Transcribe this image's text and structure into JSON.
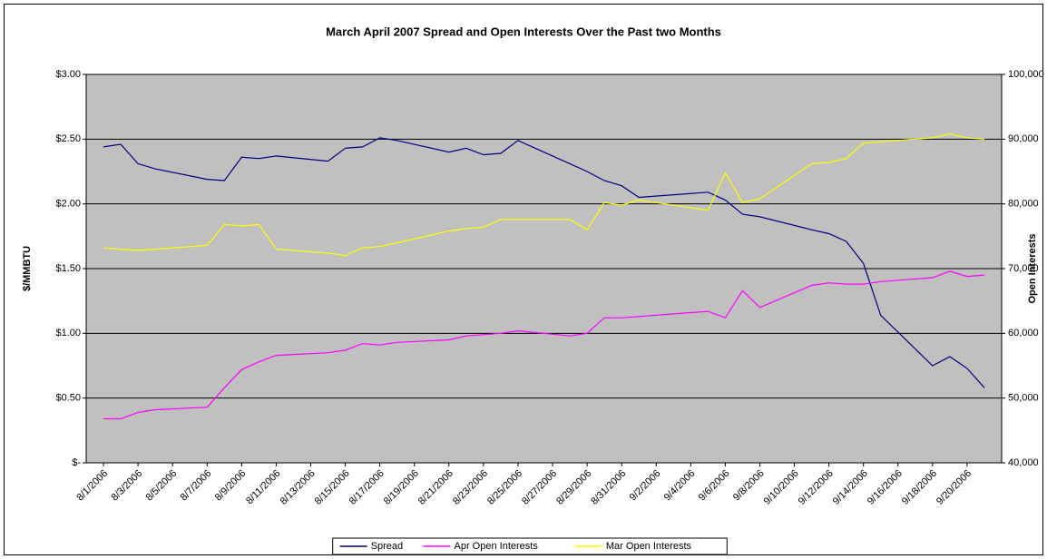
{
  "chart_data": {
    "type": "line",
    "title": "March April 2007 Spread and Open Interests Over the Past two Months",
    "ylabel": "$/MMBTU",
    "y2label": "Open Interests",
    "x": [
      "8/1/2006",
      "8/2/2006",
      "8/3/2006",
      "8/4/2006",
      "8/7/2006",
      "8/8/2006",
      "8/9/2006",
      "8/10/2006",
      "8/11/2006",
      "8/14/2006",
      "8/15/2006",
      "8/16/2006",
      "8/17/2006",
      "8/18/2006",
      "8/21/2006",
      "8/22/2006",
      "8/23/2006",
      "8/24/2006",
      "8/25/2006",
      "8/28/2006",
      "8/29/2006",
      "8/30/2006",
      "8/31/2006",
      "9/1/2006",
      "9/5/2006",
      "9/6/2006",
      "9/7/2006",
      "9/8/2006",
      "9/11/2006",
      "9/12/2006",
      "9/13/2006",
      "9/14/2006",
      "9/15/2006",
      "9/18/2006",
      "9/19/2006",
      "9/20/2006",
      "9/21/2006"
    ],
    "xlim": [
      "7/31/2006",
      "9/22/2006"
    ],
    "xticks": [
      "8/1/2006",
      "8/3/2006",
      "8/5/2006",
      "8/7/2006",
      "8/9/2006",
      "8/11/2006",
      "8/13/2006",
      "8/15/2006",
      "8/17/2006",
      "8/19/2006",
      "8/21/2006",
      "8/23/2006",
      "8/25/2006",
      "8/27/2006",
      "8/29/2006",
      "8/31/2006",
      "9/2/2006",
      "9/4/2006",
      "9/6/2006",
      "9/8/2006",
      "9/10/2006",
      "9/12/2006",
      "9/14/2006",
      "9/16/2006",
      "9/18/2006",
      "9/20/2006"
    ],
    "ylim": [
      0,
      3
    ],
    "yticks": [
      {
        "value": 0,
        "label": "$-"
      },
      {
        "value": 0.5,
        "label": "$0.50"
      },
      {
        "value": 1,
        "label": "$1.00"
      },
      {
        "value": 1.5,
        "label": "$1.50"
      },
      {
        "value": 2,
        "label": "$2.00"
      },
      {
        "value": 2.5,
        "label": "$2.50"
      },
      {
        "value": 3,
        "label": "$3.00"
      }
    ],
    "y2lim": [
      40000,
      100000
    ],
    "y2ticks": [
      {
        "value": 40000,
        "label": "40,000"
      },
      {
        "value": 50000,
        "label": "50,000"
      },
      {
        "value": 60000,
        "label": "60,000"
      },
      {
        "value": 70000,
        "label": "70,000"
      },
      {
        "value": 80000,
        "label": "80,000"
      },
      {
        "value": 90000,
        "label": "90,000"
      },
      {
        "value": 100000,
        "label": "100,000"
      }
    ],
    "grid": true,
    "legend": "bottom",
    "series": [
      {
        "name": "Spread",
        "color": "#000080",
        "values": [
          2.44,
          2.46,
          2.31,
          2.27,
          2.19,
          2.18,
          2.36,
          2.35,
          2.37,
          2.33,
          2.43,
          2.44,
          2.51,
          2.49,
          2.4,
          2.43,
          2.38,
          2.39,
          2.49,
          2.31,
          2.25,
          2.18,
          2.14,
          2.05,
          2.09,
          2.03,
          1.92,
          1.9,
          1.8,
          1.77,
          1.71,
          1.54,
          1.14,
          0.75,
          0.82,
          0.73,
          0.58
        ]
      },
      {
        "name": "Apr Open Interests",
        "color": "#ff00ff",
        "axis": "y2",
        "values": [
          46800,
          46800,
          47800,
          48200,
          48600,
          51600,
          54400,
          55600,
          56600,
          57000,
          57400,
          58400,
          58200,
          58600,
          59000,
          59600,
          59800,
          60000,
          60400,
          59600,
          60000,
          62400,
          62400,
          62600,
          63400,
          62400,
          66600,
          64000,
          67400,
          67800,
          67600,
          67600,
          68000,
          68600,
          69600,
          68800,
          69000
        ]
      },
      {
        "name": "Mar Open Interests",
        "color": "#ffff00",
        "axis": "y2",
        "values": [
          73200,
          73000,
          72800,
          73000,
          73600,
          76800,
          76600,
          76800,
          73000,
          72400,
          72000,
          73200,
          73400,
          74000,
          75800,
          76200,
          76400,
          77600,
          77600,
          77600,
          76000,
          80200,
          79800,
          80600,
          79000,
          84800,
          80200,
          80800,
          86200,
          86400,
          87000,
          89400,
          89600,
          90200,
          90800,
          90200,
          90000
        ]
      }
    ]
  }
}
